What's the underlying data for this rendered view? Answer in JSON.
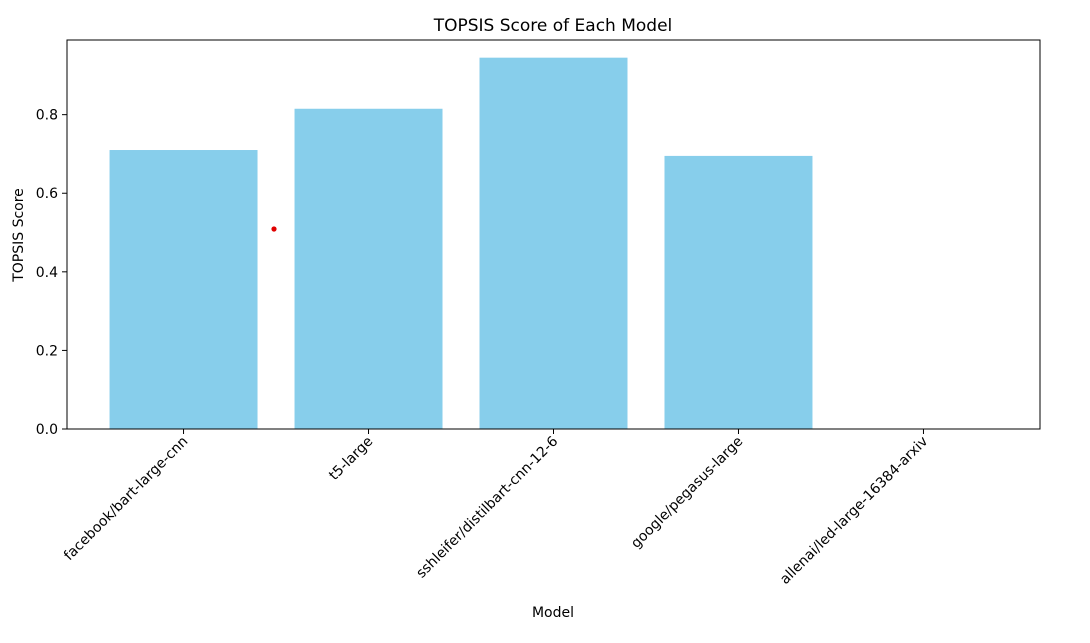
{
  "chart_data": {
    "type": "bar",
    "title": "TOPSIS Score of Each Model",
    "xlabel": "Model",
    "ylabel": "TOPSIS Score",
    "categories": [
      "facebook/bart-large-cnn",
      "t5-large",
      "sshleifer/distilbart-cnn-12-6",
      "google/pegasus-large",
      "allenai/led-large-16384-arxiv"
    ],
    "values": [
      0.71,
      0.815,
      0.945,
      0.695,
      0.0
    ],
    "ylim": [
      0,
      0.99
    ],
    "yticks": [
      0.0,
      0.2,
      0.4,
      0.6,
      0.8
    ],
    "ytick_labels": [
      "0.0",
      "0.2",
      "0.4",
      "0.6",
      "0.8"
    ],
    "grid": false,
    "bar_color": "#87ceeb"
  },
  "annotation": {
    "marker_color": "#e00000"
  }
}
